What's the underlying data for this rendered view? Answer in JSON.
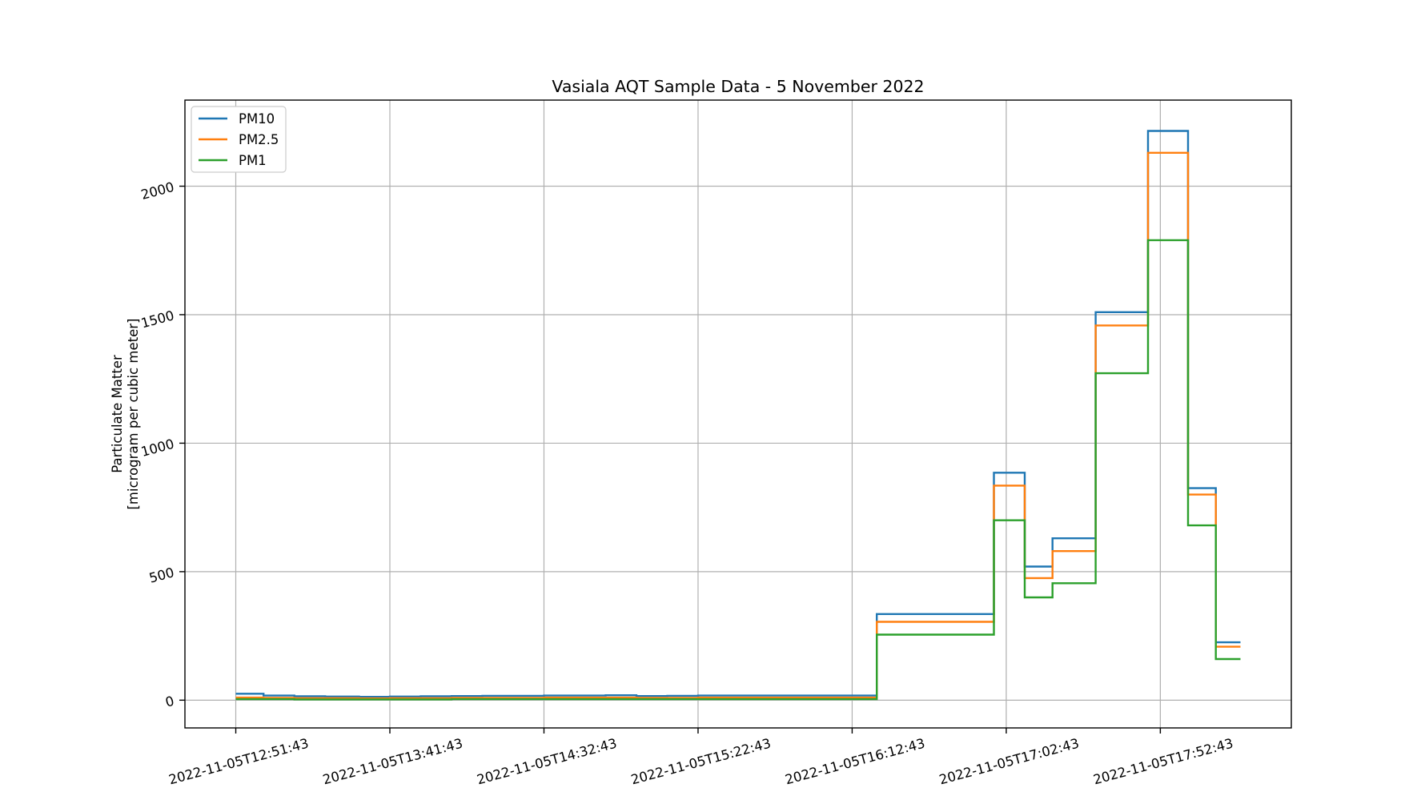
{
  "chart_data": {
    "type": "line",
    "title": "Vasiala AQT Sample Data - 5 November 2022",
    "xlabel": "",
    "ylabel_lines": [
      "Particulate Matter",
      "[microgram per cubic meter]"
    ],
    "x_tick_labels": [
      "2022-11-05T12:51:43",
      "2022-11-05T13:41:43",
      "2022-11-05T14:32:43",
      "2022-11-05T15:22:43",
      "2022-11-05T16:12:43",
      "2022-11-05T17:02:43",
      "2022-11-05T17:52:43"
    ],
    "y_ticks": [
      0,
      500,
      1000,
      1500,
      2000
    ],
    "y_tick_labels": [
      "0",
      "500",
      "1000",
      "1500",
      "2000"
    ],
    "ylim": [
      -108,
      2335
    ],
    "xlim": [
      -0.33,
      6.85
    ],
    "grid": true,
    "legend_position": "upper-left",
    "step_style": "post",
    "x": [
      0,
      0.18,
      0.38,
      0.58,
      0.8,
      1.0,
      1.2,
      1.4,
      1.6,
      1.8,
      2.0,
      2.2,
      2.4,
      2.6,
      2.8,
      3.0,
      3.2,
      3.4,
      3.6,
      3.8,
      4.0,
      4.16,
      4.25,
      4.5,
      4.75,
      4.92,
      5.0,
      5.12,
      5.2,
      5.3,
      5.4,
      5.58,
      5.6,
      5.8,
      5.92,
      6.0,
      6.15,
      6.18,
      6.3,
      6.36,
      6.52
    ],
    "series": [
      {
        "name": "PM10",
        "color": "#1f77b4",
        "values": [
          25,
          18,
          15,
          14,
          13,
          14,
          15,
          16,
          17,
          17,
          18,
          18,
          19,
          16,
          17,
          18,
          18,
          18,
          18,
          18,
          18,
          335,
          335,
          335,
          335,
          885,
          885,
          520,
          520,
          630,
          630,
          1510,
          1510,
          1510,
          2215,
          2215,
          2215,
          825,
          825,
          225,
          225
        ]
      },
      {
        "name": "PM2.5",
        "color": "#ff7f0e",
        "values": [
          10,
          9,
          8,
          8,
          7,
          8,
          8,
          9,
          9,
          9,
          10,
          10,
          10,
          9,
          9,
          10,
          10,
          10,
          10,
          10,
          10,
          305,
          305,
          305,
          305,
          835,
          835,
          475,
          475,
          580,
          580,
          1458,
          1458,
          1458,
          2130,
          2130,
          2130,
          800,
          800,
          208,
          208
        ]
      },
      {
        "name": "PM1",
        "color": "#2ca02c",
        "values": [
          4,
          4,
          3,
          3,
          3,
          3,
          3,
          4,
          4,
          4,
          4,
          4,
          4,
          4,
          4,
          4,
          4,
          4,
          4,
          4,
          4,
          255,
          255,
          255,
          255,
          700,
          700,
          400,
          400,
          455,
          455,
          1272,
          1272,
          1272,
          1790,
          1790,
          1790,
          680,
          680,
          160,
          160
        ]
      }
    ]
  }
}
